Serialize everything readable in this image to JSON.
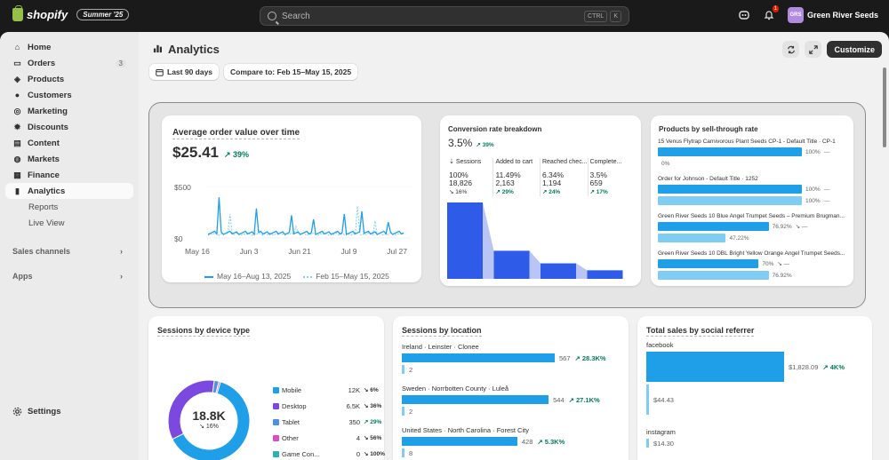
{
  "topbar": {
    "brand": "shopify",
    "edition": "Summer '25",
    "search_placeholder": "Search",
    "kbd1": "CTRL",
    "kbd2": "K",
    "notification_count": "1",
    "store_initials": "GRS",
    "store_name": "Green River Seeds"
  },
  "sidebar": {
    "items": [
      {
        "label": "Home",
        "icon": "home-icon"
      },
      {
        "label": "Orders",
        "icon": "inbox-icon",
        "count": "3"
      },
      {
        "label": "Products",
        "icon": "tag-icon"
      },
      {
        "label": "Customers",
        "icon": "person-icon"
      },
      {
        "label": "Marketing",
        "icon": "target-icon"
      },
      {
        "label": "Discounts",
        "icon": "discount-icon"
      },
      {
        "label": "Content",
        "icon": "content-icon"
      },
      {
        "label": "Markets",
        "icon": "globe-icon"
      },
      {
        "label": "Finance",
        "icon": "bank-icon"
      },
      {
        "label": "Analytics",
        "icon": "chart-icon"
      }
    ],
    "sub_items": [
      "Reports",
      "Live View"
    ],
    "sections": [
      "Sales channels",
      "Apps"
    ],
    "settings": "Settings"
  },
  "page": {
    "title": "Analytics",
    "customize": "Customize",
    "date_range": "Last 90 days",
    "compare": "Compare to: Feb 15–May 15, 2025"
  },
  "aov": {
    "title": "Average order value over time",
    "value": "$25.41",
    "change": "39%",
    "y_ticks": [
      "$500",
      "$0"
    ],
    "x_ticks": [
      "May 16",
      "Jun 3",
      "Jun 21",
      "Jul 9",
      "Jul 27"
    ],
    "legend_current": "May 16–Aug 13, 2025",
    "legend_previous": "Feb 15–May 15, 2025"
  },
  "conversion": {
    "title": "Conversion rate breakdown",
    "value": "3.5%",
    "change": "39%",
    "columns": [
      {
        "header": "Sessions",
        "pct": "100%",
        "count": "18,826",
        "change": "16%",
        "dir": "down"
      },
      {
        "header": "Added to cart",
        "pct": "11.49%",
        "count": "2,163",
        "change": "29%",
        "dir": "up"
      },
      {
        "header": "Reached chec...",
        "pct": "6.34%",
        "count": "1,194",
        "change": "24%",
        "dir": "up"
      },
      {
        "header": "Complete...",
        "pct": "3.5%",
        "count": "659",
        "change": "17%",
        "dir": "up"
      }
    ]
  },
  "sell_through": {
    "title": "Products by sell-through rate",
    "rows": [
      {
        "label": "15 Venus Flytrap Carnivorous Plant Seeds CP-1 - Default Title · CP-1",
        "current_label": "100%",
        "previous_label": "0%",
        "current_frac": 1.0,
        "previous_frac": 0.0
      },
      {
        "label": "Order for Johnson - Default Title · 1252",
        "current_label": "100%",
        "previous_label": "100%",
        "current_frac": 1.0,
        "previous_frac": 1.0
      },
      {
        "label": "Green River Seeds 10 Blue Angel Trumpet Seeds – Premium Brugman...",
        "current_label": "76.92%",
        "previous_label": "47.22%",
        "current_frac": 0.7692,
        "previous_frac": 0.4722
      },
      {
        "label": "Green River Seeds 10 DBL Bright Yellow Orange Angel Trumpet Seeds...",
        "current_label": "70%",
        "previous_label": "76.92%",
        "current_frac": 0.7,
        "previous_frac": 0.7692
      }
    ]
  },
  "device": {
    "title": "Sessions by device type",
    "total": "18.8K",
    "change": "16%",
    "rows": [
      {
        "name": "Mobile",
        "value": "12K",
        "change": "6%",
        "dir": "down",
        "color": "#1e9fe8"
      },
      {
        "name": "Desktop",
        "value": "6.5K",
        "change": "36%",
        "dir": "down",
        "color": "#7b48e0"
      },
      {
        "name": "Tablet",
        "value": "350",
        "change": "29%",
        "dir": "up",
        "color": "#4f8fe8"
      },
      {
        "name": "Other",
        "value": "4",
        "change": "56%",
        "dir": "down",
        "color": "#d64fc4"
      },
      {
        "name": "Game Con...",
        "value": "0",
        "change": "100%",
        "dir": "down",
        "color": "#2bb3b3"
      }
    ]
  },
  "location": {
    "title": "Sessions by location",
    "rows": [
      {
        "label": "Ireland · Leinster · Clonee",
        "value": "567",
        "change": "28.3K%",
        "previous": "2",
        "frac": 1.0
      },
      {
        "label": "Sweden · Norrbotten County · Luleå",
        "value": "544",
        "change": "27.1K%",
        "previous": "2",
        "frac": 0.96
      },
      {
        "label": "United States · North Carolina · Forest City",
        "value": "428",
        "change": "5.3K%",
        "previous": "8",
        "frac": 0.755
      }
    ]
  },
  "referrer": {
    "title": "Total sales by social referrer",
    "rows": [
      {
        "label": "facebook",
        "value": "$1,828.09",
        "change": "4K%",
        "previous": "$44.43",
        "frac": 1.0
      },
      {
        "label": "instagram",
        "value": "",
        "change": "",
        "previous": "$14.30",
        "frac": 0.0
      }
    ]
  }
}
